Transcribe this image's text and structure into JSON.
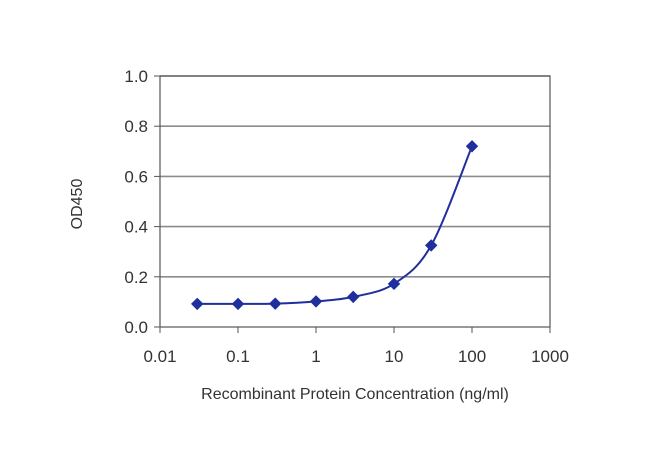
{
  "chart_data": {
    "type": "line",
    "xlabel": "Recombinant Protein Concentration (ng/ml)",
    "ylabel": "OD450",
    "x_scale": "log",
    "xlim": [
      0.01,
      1000
    ],
    "ylim": [
      0,
      1.0
    ],
    "x_ticks": [
      "0.01",
      "0.1",
      "1",
      "10",
      "100",
      "1000"
    ],
    "y_ticks": [
      "0.0",
      "0.2",
      "0.4",
      "0.6",
      "0.8",
      "1.0"
    ],
    "grid": "horizontal",
    "series": [
      {
        "x": [
          0.03,
          0.1,
          0.3,
          1,
          3,
          10,
          30,
          100
        ],
        "y": [
          0.092,
          0.092,
          0.093,
          0.102,
          0.12,
          0.172,
          0.325,
          0.72
        ],
        "marker": "diamond"
      }
    ]
  },
  "colors": {
    "series": "#1f2f9e",
    "grid": "#8c8c8c",
    "axis": "#555555"
  }
}
